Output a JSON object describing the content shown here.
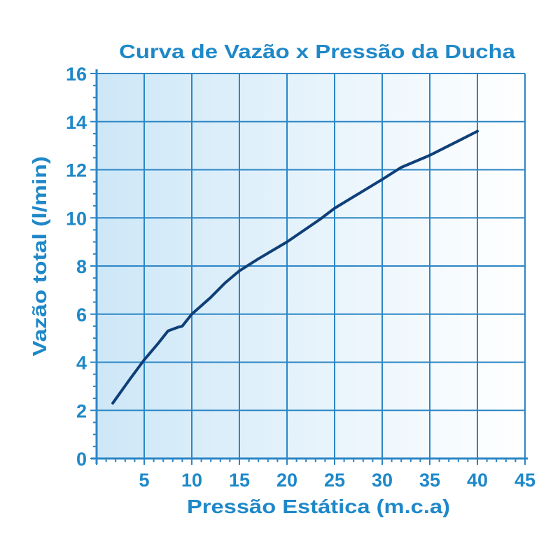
{
  "chart_data": {
    "type": "line",
    "title": "Curva de Vazão x Pressão da Ducha",
    "xlabel": "Pressão Estática (m.c.a)",
    "ylabel": "Vazão total (l/min)",
    "xlim": [
      0,
      45
    ],
    "ylim": [
      0,
      16
    ],
    "xticks": [
      5,
      10,
      15,
      20,
      25,
      30,
      35,
      40,
      45
    ],
    "xtick_labels": [
      "5",
      "10",
      "15",
      "20",
      "25",
      "30",
      "35",
      "40",
      "45"
    ],
    "yticks": [
      0,
      2,
      4,
      6,
      8,
      10,
      12,
      14,
      16
    ],
    "ytick_labels": [
      "0",
      "2",
      "4",
      "6",
      "8",
      "10",
      "12",
      "14",
      "16"
    ],
    "grid": true,
    "colors": {
      "text": "#1E88C8",
      "grid": "#2C86C6",
      "line": "#0F3F78",
      "background_left": "#CDE7F7",
      "background_right": "#FFFFFF"
    },
    "series": [
      {
        "x": [
          1.7,
          3.5,
          5.0,
          6.5,
          7.5,
          8.5,
          9.0,
          10.0,
          12.0,
          13.5,
          15.0,
          17.0,
          20.0,
          23.5,
          25.0,
          27.5,
          30.0,
          32.0,
          35.0,
          38.0,
          40.0
        ],
        "y": [
          2.3,
          3.3,
          4.1,
          4.8,
          5.3,
          5.45,
          5.5,
          6.0,
          6.7,
          7.3,
          7.8,
          8.3,
          9.0,
          9.95,
          10.4,
          11.0,
          11.6,
          12.1,
          12.6,
          13.2,
          13.6
        ]
      }
    ]
  }
}
